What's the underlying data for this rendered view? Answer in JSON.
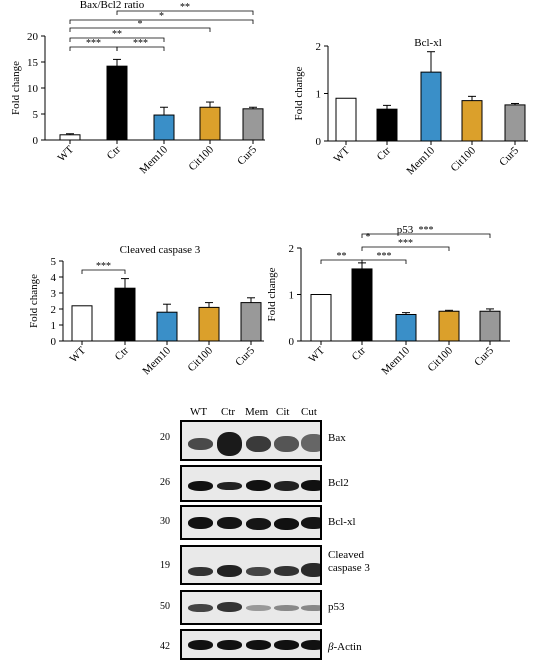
{
  "charts": [
    {
      "id": "baxbcl2",
      "type": "bar",
      "title": "Bax/Bcl2 ratio",
      "ylabel": "Fold change",
      "ylim": [
        0,
        20
      ],
      "yticks": [
        "0",
        "5",
        "10",
        "15",
        "20"
      ],
      "categories": [
        "WT",
        "Ctr",
        "Mem10",
        "Cit100",
        "Cur5"
      ],
      "values": [
        1.0,
        14.2,
        4.8,
        6.3,
        6.0
      ],
      "errors": [
        0.2,
        1.3,
        1.5,
        1.0,
        0.3
      ],
      "sig": [
        "***",
        "***",
        "**",
        "*",
        "*",
        "**"
      ]
    },
    {
      "id": "bclxl",
      "type": "bar",
      "title": "Bcl-xl",
      "ylabel": "Fold change",
      "ylim": [
        0,
        2
      ],
      "yticks": [
        "0",
        "1",
        "2"
      ],
      "categories": [
        "WT",
        "Ctr",
        "Mem10",
        "Cit100",
        "Cur5"
      ],
      "values": [
        0.9,
        0.67,
        1.45,
        0.85,
        0.76
      ],
      "errors": [
        0.0,
        0.08,
        0.43,
        0.09,
        0.03
      ]
    },
    {
      "id": "casp3",
      "type": "bar",
      "title": "Cleaved caspase 3",
      "ylabel": "Fold change",
      "ylim": [
        0,
        5
      ],
      "yticks": [
        "0",
        "1",
        "2",
        "3",
        "4",
        "5"
      ],
      "categories": [
        "WT",
        "Ctr",
        "Mem10",
        "Cit100",
        "Cur5"
      ],
      "values": [
        2.2,
        3.3,
        1.8,
        2.1,
        2.4
      ],
      "errors": [
        0.0,
        0.6,
        0.5,
        0.3,
        0.3
      ],
      "sig": [
        "***"
      ]
    },
    {
      "id": "p53",
      "type": "bar",
      "title": "p53",
      "ylabel": "Fold change",
      "ylim": [
        0,
        2
      ],
      "yticks": [
        "0",
        "1",
        "2"
      ],
      "categories": [
        "WT",
        "Ctr",
        "Mem10",
        "Cit100",
        "Cur5"
      ],
      "values": [
        1.0,
        1.55,
        0.57,
        0.64,
        0.64
      ],
      "errors": [
        0.0,
        0.13,
        0.04,
        0.02,
        0.05
      ],
      "sig": [
        "**",
        "***",
        "*",
        "***",
        "***"
      ]
    }
  ],
  "bar_colors": [
    "#ffffff",
    "#000000",
    "#3a8fc8",
    "#dba02b",
    "#999999"
  ],
  "blot": {
    "lanes": [
      "WT",
      "Ctr",
      "Mem",
      "Cit",
      "Cut"
    ],
    "rows": [
      {
        "mw": "20",
        "label": "Bax"
      },
      {
        "mw": "26",
        "label": "Bcl2"
      },
      {
        "mw": "30",
        "label": "Bcl-xl"
      },
      {
        "mw": "19",
        "label_line1": "Cleaved",
        "label_line2": "caspase 3"
      },
      {
        "mw": "50",
        "label": "p53"
      },
      {
        "mw": "42",
        "label_prefix": "β",
        "label_suffix": "-Actin"
      }
    ]
  }
}
